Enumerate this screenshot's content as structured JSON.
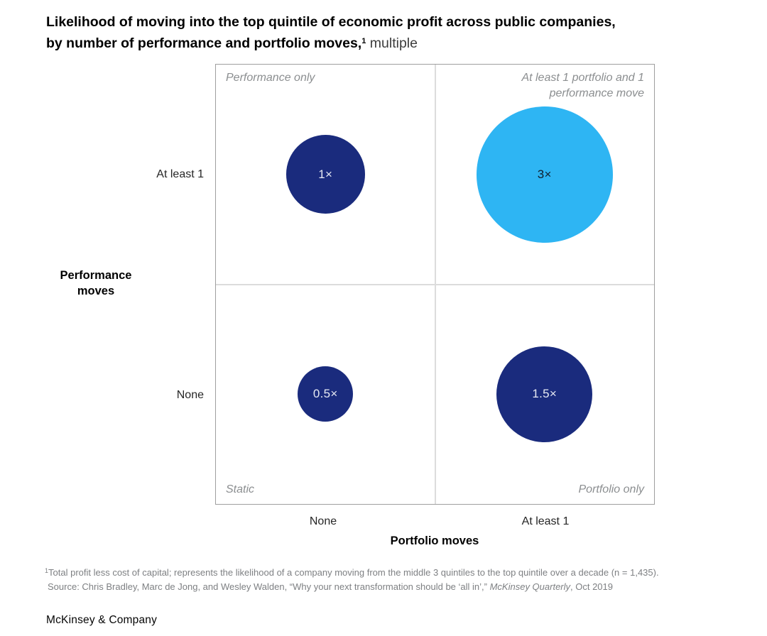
{
  "title": {
    "line1": "Likelihood of moving into the top quintile of economic profit across public companies,",
    "line2": "by number of performance and portfolio moves,",
    "superscript": "1",
    "unit_suffix": " multiple"
  },
  "chart_data": {
    "type": "scatter",
    "subtype": "bubble-quadrant",
    "title": "Likelihood of moving into the top quintile of economic profit across public companies, by number of performance and portfolio moves, multiple",
    "xlabel": "Portfolio moves",
    "ylabel": "Performance moves",
    "x_axis": {
      "label": "Portfolio moves",
      "categories": [
        "None",
        "At least 1"
      ]
    },
    "y_axis": {
      "label": "Performance moves",
      "categories": [
        "At least 1",
        "None"
      ]
    },
    "grid": "2x2 quadrant dividers",
    "legend_position": "none",
    "quadrant_labels": {
      "top_left": "Performance only",
      "top_right": "At least 1 portfolio and 1 performance move",
      "bottom_left": "Static",
      "bottom_right": "Portfolio only"
    },
    "size_encoding": "bubble area proportional to multiple value",
    "bubbles": [
      {
        "portfolio_moves": "None",
        "performance_moves": "At least 1",
        "value": 1,
        "label": "1×",
        "color": "#1A2B7D",
        "text_color": "#E6E9F3"
      },
      {
        "portfolio_moves": "At least 1",
        "performance_moves": "At least 1",
        "value": 3,
        "label": "3×",
        "color": "#2EB5F3",
        "text_color": "#10202E"
      },
      {
        "portfolio_moves": "None",
        "performance_moves": "None",
        "value": 0.5,
        "label": "0.5×",
        "color": "#1A2B7D",
        "text_color": "#E6E9F3"
      },
      {
        "portfolio_moves": "At least 1",
        "performance_moves": "None",
        "value": 1.5,
        "label": "1.5×",
        "color": "#1A2B7D",
        "text_color": "#E6E9F3"
      }
    ],
    "colors": {
      "navy": "#1A2B7D",
      "cyan": "#2EB5F3",
      "divider_gray": "#DCDCDC",
      "border_gray": "#9E9E9E",
      "label_gray": "#8B8E90"
    }
  },
  "footnote": {
    "marker": "1",
    "line1": "Total profit less cost of capital; represents the likelihood of a company moving from the middle 3 quintiles to the top quintile over a decade (n = 1,435).",
    "source_prefix": "Source: Chris Bradley, Marc de Jong, and Wesley Walden, “Why your next transformation should be ‘all in’,” ",
    "source_italic": "McKinsey Quarterly",
    "source_suffix": ", Oct 2019"
  },
  "brand": "McKinsey & Company"
}
